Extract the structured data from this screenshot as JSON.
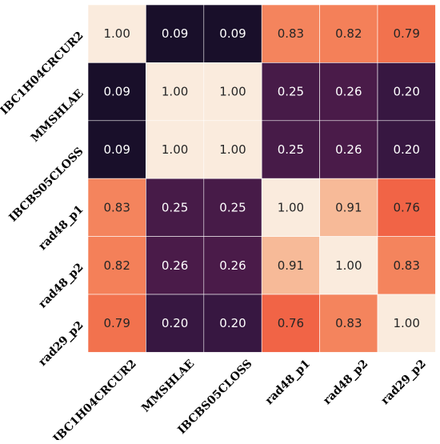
{
  "chart_data": {
    "type": "heatmap",
    "rows": [
      "IBC1H04CRCUR2",
      "MMSHLAE",
      "IBCBS05CLOSS",
      "rad48_p1",
      "rad48_p2",
      "rad29_p2"
    ],
    "cols": [
      "IBC1H04CRCUR2",
      "MMSHLAE",
      "IBCBS05CLOSS",
      "rad48_p1",
      "rad48_p2",
      "rad29_p2"
    ],
    "values": [
      [
        1.0,
        0.09,
        0.09,
        0.83,
        0.82,
        0.79
      ],
      [
        0.09,
        1.0,
        1.0,
        0.25,
        0.26,
        0.2
      ],
      [
        0.09,
        1.0,
        1.0,
        0.25,
        0.26,
        0.2
      ],
      [
        0.83,
        0.25,
        0.25,
        1.0,
        0.91,
        0.76
      ],
      [
        0.82,
        0.26,
        0.26,
        0.91,
        1.0,
        0.83
      ],
      [
        0.79,
        0.2,
        0.2,
        0.76,
        0.83,
        1.0
      ]
    ],
    "value_format": "0.00",
    "colormap": "rocket",
    "grid": true,
    "grid_color": "#ffffff",
    "colorbar": false,
    "text_color_dark_cells": "#ffffff",
    "text_color_light_cells": "#262626",
    "title": "",
    "xlabel": "",
    "ylabel": ""
  }
}
